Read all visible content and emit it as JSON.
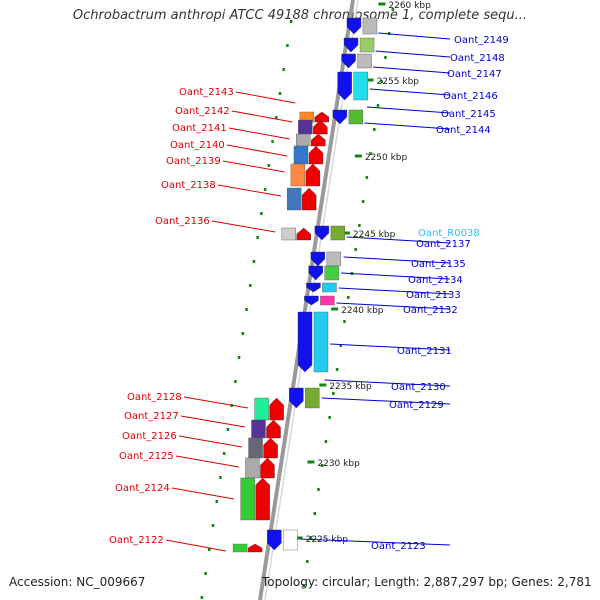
{
  "title": "Ochrobactrum anthropi ATCC 49188 chromosome 1, complete sequ...",
  "footer": {
    "accession": "Accession: NC_009667",
    "topology": "Topology: circular; Length: 2,887,297 bp; Genes: 2,781"
  },
  "colors": {
    "reverse_label": "#dd0000",
    "forward_label": "#0000cc",
    "rna_label": "#33bbee",
    "axis": "#999999",
    "tick": "#118811"
  },
  "scale": {
    "ticks": [
      "2260 kbp",
      "2255 kbp",
      "2250 kbp",
      "2245 kbp",
      "2240 kbp",
      "2235 kbp",
      "2230 kbp",
      "2225 kbp"
    ]
  },
  "genes": {
    "forward": [
      "Oant_2149",
      "Oant_2148",
      "Oant_2147",
      "Oant_2146",
      "Oant_2145",
      "Oant_2144",
      "Oant_2137",
      "Oant_2135",
      "Oant_2134",
      "Oant_2133",
      "Oant_2132",
      "Oant_2131",
      "Oant_2130",
      "Oant_2129",
      "Oant_2123"
    ],
    "rna": [
      "Oant_R0038"
    ],
    "reverse": [
      "Oant_2143",
      "Oant_2142",
      "Oant_2141",
      "Oant_2140",
      "Oant_2139",
      "Oant_2138",
      "Oant_2136",
      "Oant_2128",
      "Oant_2127",
      "Oant_2126",
      "Oant_2125",
      "Oant_2124",
      "Oant_2122"
    ]
  }
}
